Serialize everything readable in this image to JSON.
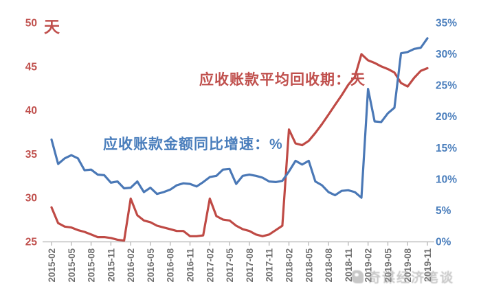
{
  "chart_data": {
    "type": "line",
    "x_tick_labels": [
      "2015-02",
      "2015-05",
      "2015-08",
      "2015-11",
      "2016-02",
      "2016-05",
      "2016-08",
      "2016-11",
      "2017-02",
      "2017-05",
      "2017-08",
      "2017-11",
      "2018-02",
      "2018-05",
      "2018-08",
      "2018-11",
      "2019-02",
      "2019-05",
      "2019-08",
      "2019-11"
    ],
    "x_tick_every": 3,
    "x_label_rotation": -90,
    "x_tick_label_color": "#6f6f6f",
    "axis_line_color": "#bfbfbf",
    "grid": "off",
    "left_axis": {
      "unit": "天",
      "color": "#c0504d",
      "min": 25,
      "max": 50,
      "tick_labels": [
        "50",
        "45",
        "40",
        "35",
        "30",
        "25"
      ],
      "tick_values": [
        50,
        45,
        40,
        35,
        30,
        25
      ]
    },
    "right_axis": {
      "color": "#4a7ebc",
      "min": 0,
      "max": 35,
      "tick_labels": [
        "35%",
        "30%",
        "25%",
        "20%",
        "15%",
        "10%",
        "5%",
        "0%"
      ],
      "tick_values": [
        35,
        30,
        25,
        20,
        15,
        10,
        5,
        0
      ]
    },
    "series": [
      {
        "name": "应收账款平均回收期：天",
        "axis": "left",
        "color": "#bf4a45",
        "line_width": 3.2,
        "values": [
          28.9,
          27.1,
          26.7,
          26.6,
          26.3,
          26.1,
          25.8,
          25.5,
          25.5,
          25.4,
          25.2,
          25.1,
          29.9,
          28.0,
          27.4,
          27.2,
          26.8,
          26.6,
          26.4,
          26.2,
          26.2,
          25.6,
          25.6,
          25.7,
          29.9,
          27.9,
          27.5,
          27.4,
          26.8,
          26.4,
          26.2,
          25.8,
          25.6,
          25.8,
          26.3,
          26.8,
          37.8,
          36.2,
          36.0,
          36.5,
          37.4,
          38.4,
          39.5,
          40.6,
          41.7,
          42.9,
          43.8,
          46.4,
          45.7,
          45.4,
          45.0,
          44.7,
          44.3,
          43.1,
          42.7,
          43.7,
          44.5,
          44.8
        ]
      },
      {
        "name": "应收账款金额同比增速：%",
        "axis": "right",
        "color": "#4a78b6",
        "line_width": 3.2,
        "values": [
          16.3,
          12.4,
          13.3,
          13.8,
          13.3,
          11.4,
          11.5,
          10.7,
          10.6,
          9.4,
          9.6,
          8.5,
          8.6,
          9.6,
          7.9,
          8.6,
          7.6,
          7.9,
          8.3,
          9.0,
          9.3,
          9.2,
          8.8,
          9.5,
          10.3,
          10.5,
          11.5,
          11.6,
          9.2,
          10.5,
          10.7,
          10.5,
          10.2,
          9.6,
          9.5,
          9.7,
          11.2,
          12.9,
          12.3,
          12.9,
          9.6,
          9.0,
          7.9,
          7.4,
          8.1,
          8.2,
          7.9,
          7.0,
          24.4,
          19.2,
          19.1,
          20.5,
          21.4,
          30.1,
          30.3,
          30.8,
          31.0,
          32.5
        ]
      }
    ],
    "annotations": {
      "red_series_label": "应收账款平均回收期：天",
      "blue_series_label": "应收账款金额同比增速：%"
    }
  },
  "watermark": {
    "logo": "watermark-logo",
    "text": "奇谋经济笔谈"
  }
}
